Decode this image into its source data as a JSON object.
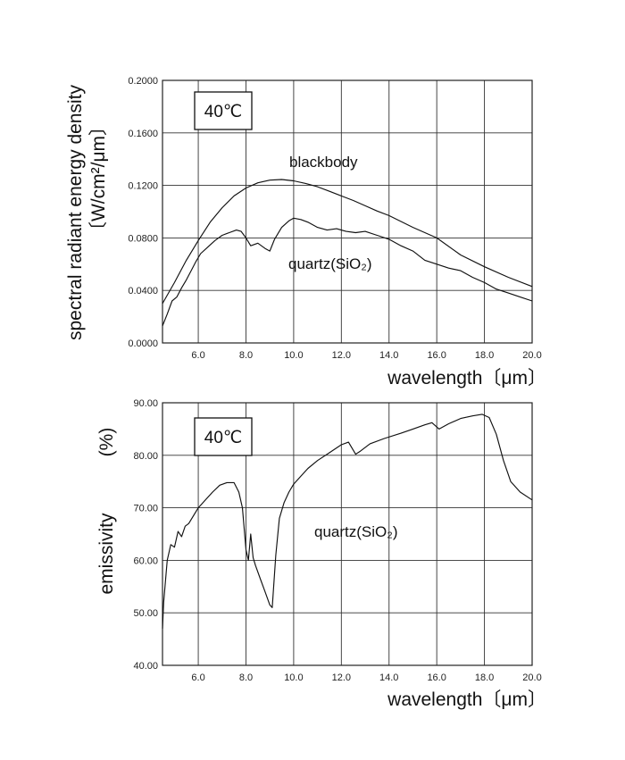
{
  "chart_data": [
    {
      "type": "line",
      "temperature_label": "40℃",
      "xlabel": "wavelength〔μm〕",
      "ylabel_line1": "spectral radiant energy density",
      "ylabel_line2": "〔W/cm²/μm〕",
      "xlim": [
        4.5,
        20.0
      ],
      "ylim": [
        0.0,
        0.2
      ],
      "xticks": [
        "6.0",
        "8.0",
        "10.0",
        "12.0",
        "14.0",
        "16.0",
        "18.0",
        "20.0"
      ],
      "yticks": [
        "0.0000",
        "0.0400",
        "0.0800",
        "0.1200",
        "0.1600",
        "0.2000"
      ],
      "grid": true,
      "series": [
        {
          "name": "blackbody",
          "x": [
            4.5,
            5.0,
            5.5,
            6.0,
            6.5,
            7.0,
            7.5,
            8.0,
            8.5,
            9.0,
            9.5,
            10.0,
            10.5,
            11.0,
            11.5,
            12.0,
            12.5,
            13.0,
            13.5,
            14.0,
            15.0,
            16.0,
            17.0,
            18.0,
            19.0,
            20.0
          ],
          "y": [
            0.03,
            0.046,
            0.063,
            0.078,
            0.092,
            0.103,
            0.112,
            0.118,
            0.122,
            0.124,
            0.1245,
            0.1235,
            0.1215,
            0.119,
            0.1155,
            0.112,
            0.1085,
            0.1045,
            0.1005,
            0.097,
            0.088,
            0.08,
            0.067,
            0.058,
            0.05,
            0.043
          ]
        },
        {
          "name": "quartz(SiO₂)",
          "x": [
            4.5,
            4.7,
            4.9,
            5.1,
            5.3,
            5.5,
            5.7,
            5.9,
            6.1,
            6.4,
            6.7,
            7.0,
            7.3,
            7.6,
            7.8,
            8.0,
            8.2,
            8.5,
            8.8,
            9.0,
            9.2,
            9.5,
            9.8,
            10.0,
            10.3,
            10.6,
            11.0,
            11.4,
            11.8,
            12.2,
            12.6,
            13.0,
            13.5,
            14.0,
            14.5,
            15.0,
            15.5,
            16.0,
            16.5,
            17.0,
            17.5,
            18.0,
            18.5,
            19.0,
            19.5,
            20.0
          ],
          "y": [
            0.013,
            0.022,
            0.032,
            0.035,
            0.042,
            0.048,
            0.055,
            0.062,
            0.068,
            0.073,
            0.078,
            0.082,
            0.084,
            0.086,
            0.085,
            0.08,
            0.074,
            0.076,
            0.072,
            0.07,
            0.079,
            0.088,
            0.093,
            0.095,
            0.094,
            0.092,
            0.088,
            0.086,
            0.087,
            0.085,
            0.084,
            0.085,
            0.082,
            0.079,
            0.074,
            0.07,
            0.063,
            0.06,
            0.057,
            0.055,
            0.05,
            0.046,
            0.041,
            0.038,
            0.035,
            0.032
          ]
        }
      ]
    },
    {
      "type": "line",
      "temperature_label": "40℃",
      "xlabel": "wavelength〔μm〕",
      "ylabel": "emissivity",
      "ylabel_unit": "(%)",
      "xlim": [
        4.5,
        20.0
      ],
      "ylim": [
        40.0,
        90.0
      ],
      "xticks": [
        "6.0",
        "8.0",
        "10.0",
        "12.0",
        "14.0",
        "16.0",
        "18.0",
        "20.0"
      ],
      "yticks": [
        "40.00",
        "50.00",
        "60.00",
        "70.00",
        "80.00",
        "90.00"
      ],
      "grid": true,
      "series": [
        {
          "name": "quartz(SiO₂)",
          "x": [
            4.5,
            4.55,
            4.7,
            4.85,
            5.0,
            5.15,
            5.3,
            5.45,
            5.6,
            5.8,
            6.0,
            6.3,
            6.6,
            6.9,
            7.2,
            7.5,
            7.7,
            7.85,
            8.0,
            8.1,
            8.2,
            8.3,
            8.4,
            8.6,
            8.8,
            9.0,
            9.1,
            9.25,
            9.4,
            9.6,
            9.8,
            10.0,
            10.3,
            10.6,
            11.0,
            11.5,
            12.0,
            12.3,
            12.6,
            12.8,
            13.2,
            13.8,
            14.5,
            15.0,
            15.5,
            15.8,
            16.1,
            16.5,
            17.0,
            17.5,
            17.9,
            18.2,
            18.5,
            18.8,
            19.1,
            19.5,
            20.0
          ],
          "y": [
            47.0,
            52.0,
            60.0,
            63.0,
            62.5,
            65.5,
            64.5,
            66.5,
            67.0,
            68.5,
            70.0,
            71.5,
            73.0,
            74.3,
            74.8,
            74.8,
            73.0,
            70.0,
            62.0,
            60.0,
            65.0,
            60.5,
            59.0,
            56.5,
            54.0,
            51.5,
            51.0,
            61.0,
            68.0,
            71.0,
            73.0,
            74.5,
            76.0,
            77.5,
            79.0,
            80.5,
            82.0,
            82.5,
            80.2,
            80.8,
            82.2,
            83.2,
            84.2,
            85.0,
            85.8,
            86.2,
            85.0,
            86.0,
            87.0,
            87.5,
            87.8,
            87.2,
            84.0,
            79.0,
            75.0,
            73.0,
            71.5
          ]
        }
      ]
    }
  ]
}
